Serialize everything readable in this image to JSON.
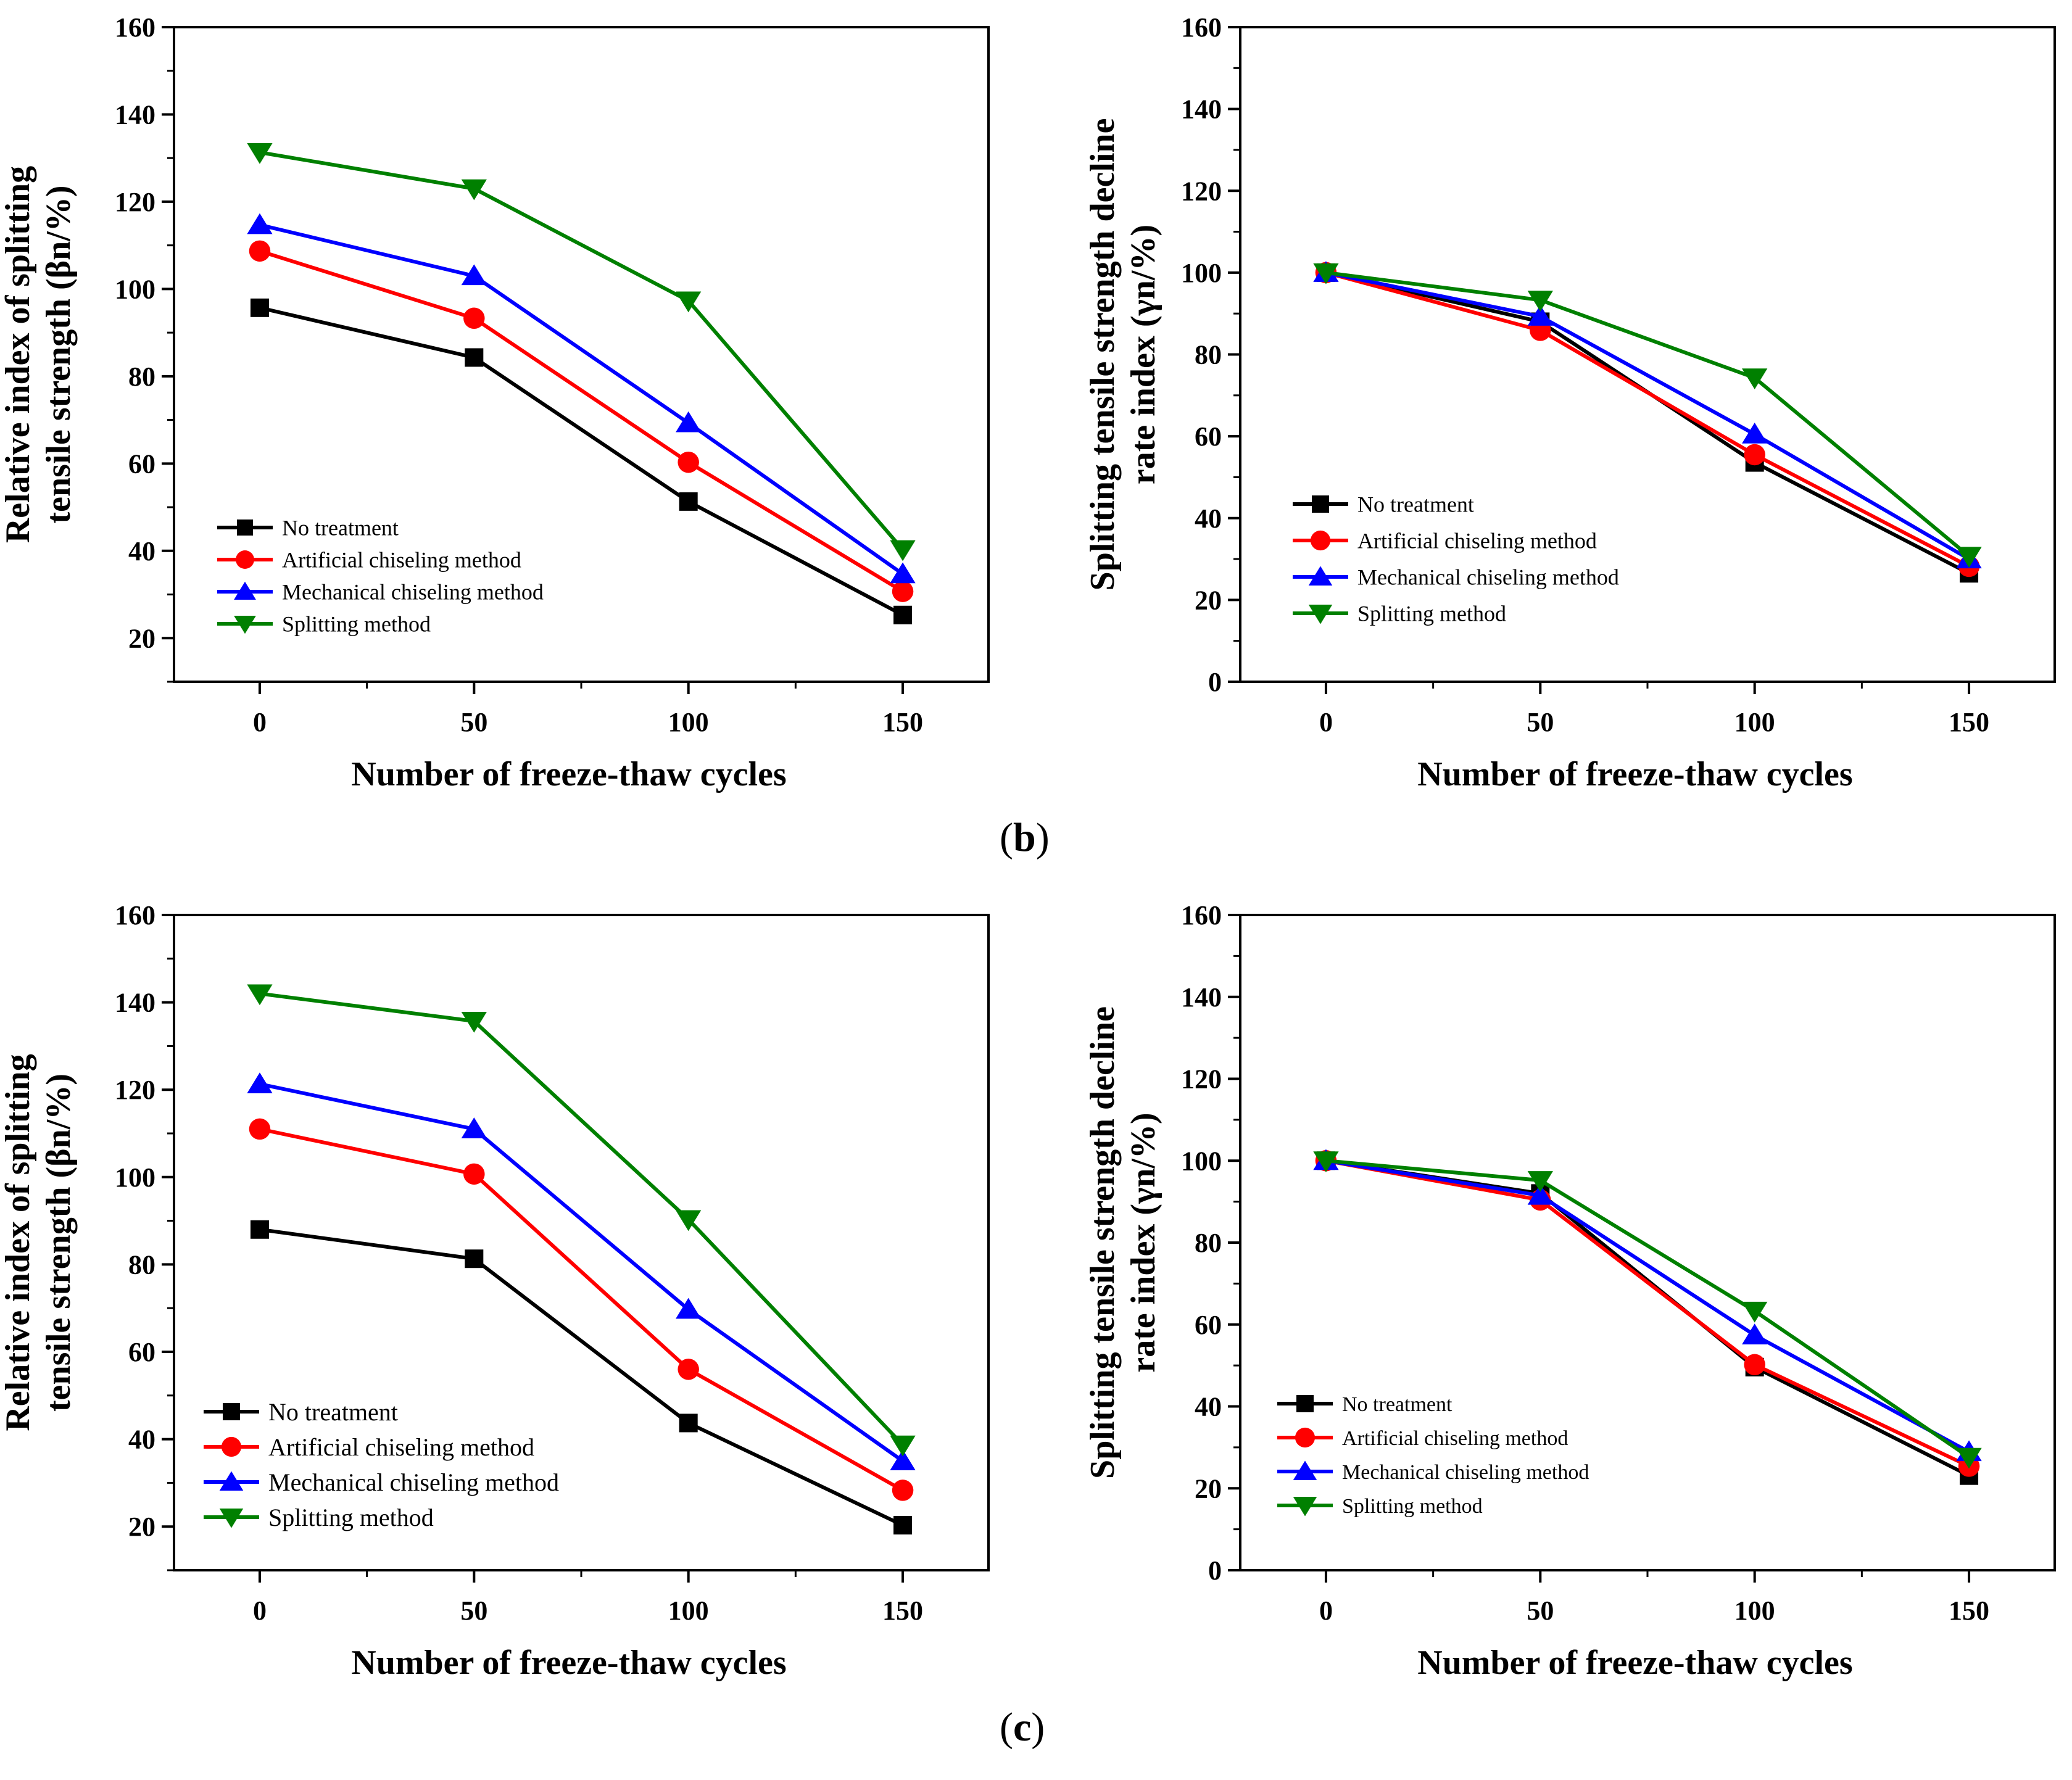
{
  "colors": {
    "no_treatment": "#000000",
    "artificial": "#ff0000",
    "mechanical": "#0000ff",
    "splitting": "#008000"
  },
  "panel_labels": {
    "b": {
      "open": "(",
      "letter": "b",
      "close": ")"
    },
    "c": {
      "open": "(",
      "letter": "c",
      "close": ")"
    }
  },
  "chart_data": [
    {
      "id": "b-left",
      "type": "line",
      "xlabel": "Number of freeze-thaw cycles",
      "ylabel_lines": [
        "Relative index of splitting",
        "tensile strength (βn/%)"
      ],
      "x": [
        0,
        50,
        100,
        150
      ],
      "xticks": [
        "0",
        "50",
        "100",
        "150"
      ],
      "xlim": [
        -20,
        170
      ],
      "ylim": [
        10,
        160
      ],
      "yticks": [
        "20",
        "40",
        "60",
        "80",
        "100",
        "120",
        "140",
        "160"
      ],
      "yticks_values": [
        20,
        40,
        60,
        80,
        100,
        120,
        140,
        160
      ],
      "legend_position": "bottom-left",
      "series": [
        {
          "name": "No treatment",
          "marker": "square",
          "values": [
            95.7,
            84.3,
            51.3,
            25.3
          ]
        },
        {
          "name": "Artificial chiseling method",
          "marker": "circle",
          "values": [
            108.7,
            93.3,
            60.3,
            30.7
          ]
        },
        {
          "name": "Mechanical chiseling method",
          "marker": "triangle-up",
          "values": [
            114.7,
            103.0,
            69.3,
            34.7
          ]
        },
        {
          "name": "Splitting method",
          "marker": "triangle-down",
          "values": [
            131.3,
            123.0,
            97.3,
            40.3
          ]
        }
      ]
    },
    {
      "id": "b-right",
      "type": "line",
      "xlabel": "Number of freeze-thaw cycles",
      "ylabel_lines": [
        "Splitting tensile strength decline",
        "rate index (γn/%)"
      ],
      "x": [
        0,
        50,
        100,
        150
      ],
      "xticks": [
        "0",
        "50",
        "100",
        "150"
      ],
      "xlim": [
        -20,
        170
      ],
      "ylim": [
        0,
        160
      ],
      "yticks": [
        "0",
        "20",
        "40",
        "60",
        "80",
        "100",
        "120",
        "140",
        "160"
      ],
      "yticks_values": [
        0,
        20,
        40,
        60,
        80,
        100,
        120,
        140,
        160
      ],
      "legend_position": "bottom-left",
      "series": [
        {
          "name": "No treatment",
          "marker": "square",
          "values": [
            100,
            88.0,
            53.6,
            26.5
          ]
        },
        {
          "name": "Artificial chiseling method",
          "marker": "circle",
          "values": [
            100,
            85.9,
            55.5,
            28.2
          ]
        },
        {
          "name": "Mechanical chiseling method",
          "marker": "triangle-up",
          "values": [
            100,
            89.3,
            60.5,
            30.0
          ]
        },
        {
          "name": "Splitting method",
          "marker": "triangle-down",
          "values": [
            100,
            93.3,
            74.3,
            30.7
          ]
        }
      ]
    },
    {
      "id": "c-left",
      "type": "line",
      "xlabel": "Number of freeze-thaw cycles",
      "ylabel_lines": [
        "Relative index of splitting",
        "tensile strength (βn/%)"
      ],
      "x": [
        0,
        50,
        100,
        150
      ],
      "xticks": [
        "0",
        "50",
        "100",
        "150"
      ],
      "xlim": [
        -20,
        170
      ],
      "ylim": [
        10,
        160
      ],
      "yticks": [
        "20",
        "40",
        "60",
        "80",
        "100",
        "120",
        "140",
        "160"
      ],
      "yticks_values": [
        20,
        40,
        60,
        80,
        100,
        120,
        140,
        160
      ],
      "legend_position": "bottom-left",
      "series": [
        {
          "name": "No treatment",
          "marker": "square",
          "values": [
            88.0,
            81.3,
            43.7,
            20.3
          ]
        },
        {
          "name": "Artificial chiseling method",
          "marker": "circle",
          "values": [
            111.0,
            100.7,
            56.0,
            28.3
          ]
        },
        {
          "name": "Mechanical chiseling method",
          "marker": "triangle-up",
          "values": [
            121.3,
            111.0,
            69.7,
            35.0
          ]
        },
        {
          "name": "Splitting method",
          "marker": "triangle-down",
          "values": [
            142.0,
            135.7,
            90.3,
            38.7
          ]
        }
      ]
    },
    {
      "id": "c-right",
      "type": "line",
      "xlabel": "Number of freeze-thaw cycles",
      "ylabel_lines": [
        "Splitting tensile strength decline",
        "rate index (γn/%)"
      ],
      "x": [
        0,
        50,
        100,
        150
      ],
      "xticks": [
        "0",
        "50",
        "100",
        "150"
      ],
      "xlim": [
        -20,
        170
      ],
      "ylim": [
        0,
        160
      ],
      "yticks": [
        "0",
        "20",
        "40",
        "60",
        "80",
        "100",
        "120",
        "140",
        "160"
      ],
      "yticks_values": [
        0,
        20,
        40,
        60,
        80,
        100,
        120,
        140,
        160
      ],
      "legend_position": "bottom-left",
      "series": [
        {
          "name": "No treatment",
          "marker": "square",
          "values": [
            100,
            92.0,
            49.6,
            23.1
          ]
        },
        {
          "name": "Artificial chiseling method",
          "marker": "circle",
          "values": [
            100,
            90.4,
            50.2,
            25.4
          ]
        },
        {
          "name": "Mechanical chiseling method",
          "marker": "triangle-up",
          "values": [
            100,
            91.5,
            57.4,
            28.9
          ]
        },
        {
          "name": "Splitting method",
          "marker": "triangle-down",
          "values": [
            100,
            95.2,
            63.3,
            27.6
          ]
        }
      ]
    }
  ]
}
